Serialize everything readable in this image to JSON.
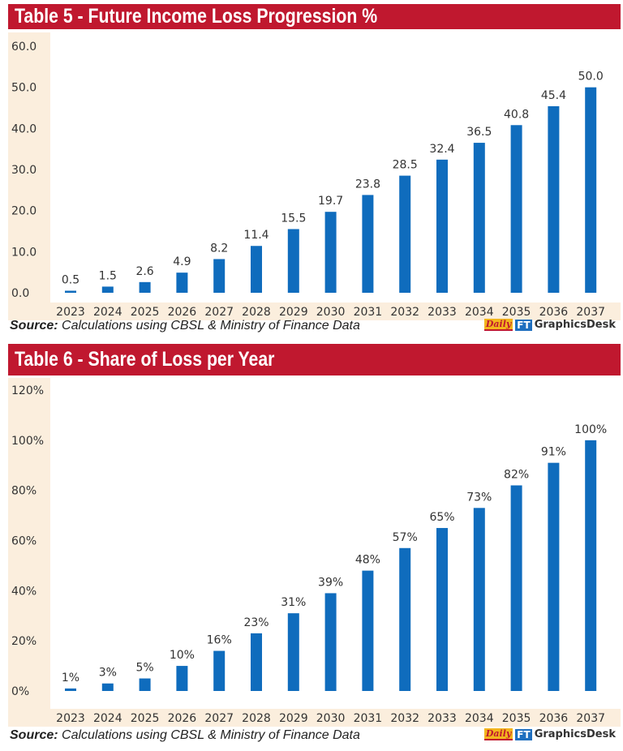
{
  "chart_data": [
    {
      "type": "bar",
      "title": "Table 5 - Future Income Loss Progression %",
      "categories": [
        "2023",
        "2024",
        "2025",
        "2026",
        "2027",
        "2028",
        "2029",
        "2030",
        "2031",
        "2032",
        "2033",
        "2034",
        "2035",
        "2036",
        "2037"
      ],
      "values": [
        0.5,
        1.5,
        2.6,
        4.9,
        8.2,
        11.4,
        15.5,
        19.7,
        23.8,
        28.5,
        32.4,
        36.5,
        40.8,
        45.4,
        50.0
      ],
      "data_labels": [
        "0.5",
        "1.5",
        "2.6",
        "4.9",
        "8.2",
        "11.4",
        "15.5",
        "19.7",
        "23.8",
        "28.5",
        "32.4",
        "36.5",
        "40.8",
        "45.4",
        "50.0"
      ],
      "yticks": [
        "0.0",
        "10.0",
        "20.0",
        "30.0",
        "40.0",
        "50.0",
        "60.0"
      ],
      "ylim": [
        0,
        60
      ],
      "xlabel": "",
      "ylabel": "",
      "grid": false,
      "source_label": "Source:",
      "source_text": " Calculations using CBSL & Ministry of Finance Data"
    },
    {
      "type": "bar",
      "title": "Table 6 - Share of Loss per Year",
      "categories": [
        "2023",
        "2024",
        "2025",
        "2026",
        "2027",
        "2028",
        "2029",
        "2030",
        "2031",
        "2032",
        "2033",
        "2034",
        "2035",
        "2036",
        "2037"
      ],
      "values": [
        1,
        3,
        5,
        10,
        16,
        23,
        31,
        39,
        48,
        57,
        65,
        73,
        82,
        91,
        100
      ],
      "data_labels": [
        "1%",
        "3%",
        "5%",
        "10%",
        "16%",
        "23%",
        "31%",
        "39%",
        "48%",
        "57%",
        "65%",
        "73%",
        "82%",
        "91%",
        "100%"
      ],
      "yticks": [
        "0%",
        "20%",
        "40%",
        "60%",
        "80%",
        "100%",
        "120%"
      ],
      "ylim": [
        0,
        120
      ],
      "xlabel": "",
      "ylabel": "",
      "grid": false,
      "source_label": "Source:",
      "source_text": " Calculations using CBSL & Ministry of Finance Data"
    }
  ],
  "branding": {
    "daily": "Daily",
    "ft": "FT",
    "desk": "GraphicsDesk"
  },
  "colors": {
    "bar": "#0f6cbd",
    "header": "#c0182f",
    "panel": "#fbeedd"
  }
}
